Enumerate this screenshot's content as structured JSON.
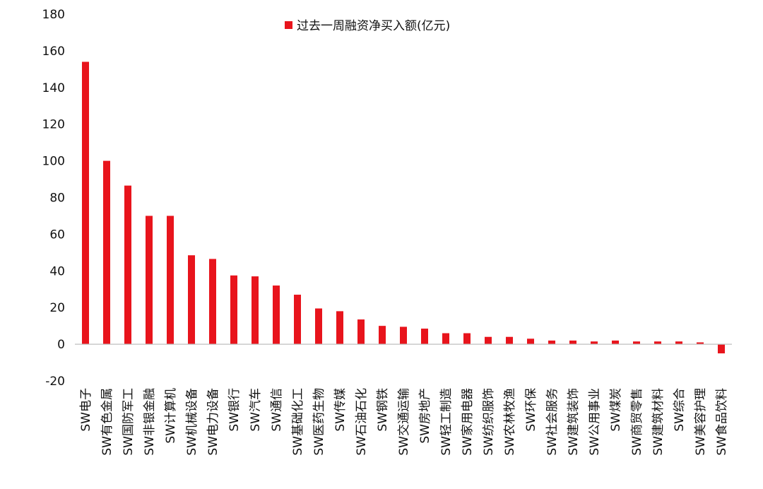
{
  "chart_data": {
    "type": "bar",
    "categories": [
      "SW电子",
      "SW有色金属",
      "SW国防军工",
      "SW非银金融",
      "SW计算机",
      "SW机械设备",
      "SW电力设备",
      "SW银行",
      "SW汽车",
      "SW通信",
      "SW基础化工",
      "SW医药生物",
      "SW传媒",
      "SW石油石化",
      "SW钢铁",
      "SW交通运输",
      "SW房地产",
      "SW轻工制造",
      "SW家用电器",
      "SW纺织服饰",
      "SW农林牧渔",
      "SW环保",
      "SW社会服务",
      "SW建筑装饰",
      "SW公用事业",
      "SW煤炭",
      "SW商贸零售",
      "SW建筑材料",
      "SW综合",
      "SW美容护理",
      "SW食品饮料"
    ],
    "series": [
      {
        "name": "过去一周融资净买入额(亿元)",
        "values": [
          154,
          100,
          86.5,
          70,
          70,
          48.5,
          46.5,
          37.5,
          37,
          32,
          27,
          19.5,
          18,
          13.5,
          10,
          9.5,
          8.5,
          6,
          6,
          4,
          4,
          3,
          2,
          2,
          1.5,
          2,
          1.5,
          1.5,
          1.5,
          1,
          -5
        ]
      }
    ],
    "ylim": [
      -20,
      180
    ],
    "yticks": [
      -20,
      0,
      20,
      40,
      60,
      80,
      100,
      120,
      140,
      160,
      180
    ],
    "legend_position": "top-center",
    "grid": false,
    "colors": {
      "bar": "#e8141c",
      "axis": "#bfbfbf",
      "text": "#111111"
    }
  }
}
